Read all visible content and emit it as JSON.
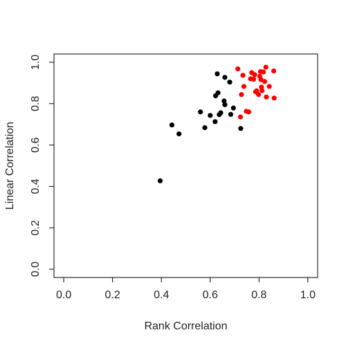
{
  "chart_data": {
    "type": "scatter",
    "title": "",
    "xlabel": "Rank Correlation",
    "ylabel": "Linear Correlation",
    "xlim": [
      -0.04,
      1.04
    ],
    "ylim": [
      -0.04,
      1.04
    ],
    "x_ticks": [
      0.0,
      0.2,
      0.4,
      0.6,
      0.8,
      1.0
    ],
    "y_ticks": [
      0.0,
      0.2,
      0.4,
      0.6,
      0.8,
      1.0
    ],
    "x_tick_labels": [
      "0.0",
      "0.2",
      "0.4",
      "0.6",
      "0.8",
      "1.0"
    ],
    "y_tick_labels": [
      "0.0",
      "0.2",
      "0.4",
      "0.6",
      "0.8",
      "1.0"
    ],
    "grid": false,
    "legend": "none",
    "series": [
      {
        "color": "#000000",
        "points": [
          [
            0.395,
            0.427
          ],
          [
            0.443,
            0.697
          ],
          [
            0.472,
            0.654
          ],
          [
            0.56,
            0.76
          ],
          [
            0.578,
            0.684
          ],
          [
            0.6,
            0.743
          ],
          [
            0.62,
            0.713
          ],
          [
            0.622,
            0.838
          ],
          [
            0.629,
            0.944
          ],
          [
            0.632,
            0.852
          ],
          [
            0.637,
            0.747
          ],
          [
            0.643,
            0.756
          ],
          [
            0.657,
            0.813
          ],
          [
            0.66,
            0.795
          ],
          [
            0.66,
            0.927
          ],
          [
            0.68,
            0.904
          ],
          [
            0.684,
            0.748
          ],
          [
            0.695,
            0.779
          ],
          [
            0.725,
            0.68
          ]
        ]
      },
      {
        "color": "#ff0000",
        "points": [
          [
            0.713,
            0.968
          ],
          [
            0.724,
            0.736
          ],
          [
            0.728,
            0.844
          ],
          [
            0.734,
            0.937
          ],
          [
            0.738,
            0.883
          ],
          [
            0.748,
            0.763
          ],
          [
            0.758,
            0.76
          ],
          [
            0.765,
            0.92
          ],
          [
            0.77,
            0.95
          ],
          [
            0.778,
            0.918
          ],
          [
            0.782,
            0.94
          ],
          [
            0.786,
            0.857
          ],
          [
            0.79,
            0.862
          ],
          [
            0.798,
            0.844
          ],
          [
            0.803,
            0.932
          ],
          [
            0.806,
            0.955
          ],
          [
            0.808,
            0.916
          ],
          [
            0.81,
            0.88
          ],
          [
            0.812,
            0.863
          ],
          [
            0.818,
            0.953
          ],
          [
            0.823,
            0.907
          ],
          [
            0.828,
            0.976
          ],
          [
            0.83,
            0.832
          ],
          [
            0.842,
            0.883
          ],
          [
            0.86,
            0.958
          ],
          [
            0.862,
            0.827
          ]
        ]
      }
    ]
  }
}
